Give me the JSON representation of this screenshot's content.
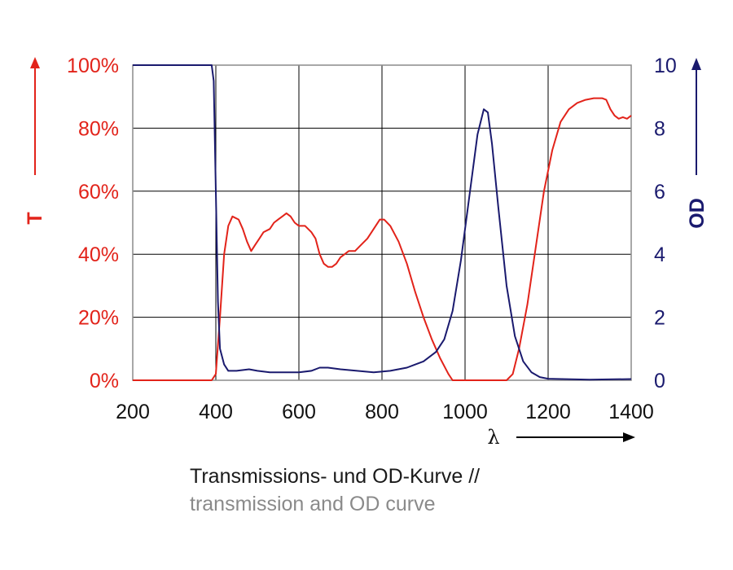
{
  "chart_data": {
    "type": "line",
    "xlabel": "λ",
    "x_ticks": [
      "200",
      "400",
      "600",
      "800",
      "1000",
      "1200",
      "1400"
    ],
    "xlim": [
      200,
      1400
    ],
    "y_left": {
      "label": "T",
      "ticks": [
        "0%",
        "20%",
        "40%",
        "60%",
        "80%",
        "100%"
      ],
      "lim": [
        0,
        100
      ],
      "color": "#e2231a"
    },
    "y_right": {
      "label": "OD",
      "ticks": [
        "0",
        "2",
        "4",
        "6",
        "8",
        "10"
      ],
      "lim": [
        0,
        10
      ],
      "color": "#1a1a6e"
    },
    "grid": true,
    "series": [
      {
        "axis": "left",
        "color": "#e2231a",
        "points": [
          [
            200,
            0
          ],
          [
            390,
            0
          ],
          [
            400,
            2
          ],
          [
            410,
            20
          ],
          [
            420,
            40
          ],
          [
            430,
            49
          ],
          [
            440,
            52
          ],
          [
            455,
            51
          ],
          [
            465,
            48
          ],
          [
            475,
            44
          ],
          [
            485,
            41
          ],
          [
            495,
            43
          ],
          [
            505,
            45
          ],
          [
            515,
            47
          ],
          [
            530,
            48
          ],
          [
            540,
            50
          ],
          [
            550,
            51
          ],
          [
            560,
            52
          ],
          [
            570,
            53
          ],
          [
            580,
            52
          ],
          [
            590,
            50
          ],
          [
            600,
            49
          ],
          [
            615,
            49
          ],
          [
            630,
            47
          ],
          [
            640,
            45
          ],
          [
            650,
            40
          ],
          [
            660,
            37
          ],
          [
            670,
            36
          ],
          [
            680,
            36
          ],
          [
            690,
            37
          ],
          [
            700,
            39
          ],
          [
            710,
            40
          ],
          [
            720,
            41
          ],
          [
            735,
            41
          ],
          [
            750,
            43
          ],
          [
            765,
            45
          ],
          [
            780,
            48
          ],
          [
            795,
            51
          ],
          [
            805,
            51
          ],
          [
            820,
            49
          ],
          [
            840,
            44
          ],
          [
            860,
            37
          ],
          [
            880,
            28
          ],
          [
            900,
            20
          ],
          [
            920,
            13
          ],
          [
            940,
            7
          ],
          [
            960,
            2
          ],
          [
            970,
            0
          ],
          [
            1100,
            0
          ],
          [
            1115,
            2
          ],
          [
            1130,
            10
          ],
          [
            1150,
            24
          ],
          [
            1170,
            42
          ],
          [
            1190,
            60
          ],
          [
            1210,
            73
          ],
          [
            1230,
            82
          ],
          [
            1250,
            86
          ],
          [
            1270,
            88
          ],
          [
            1290,
            89
          ],
          [
            1310,
            89.5
          ],
          [
            1330,
            89.5
          ],
          [
            1340,
            89
          ],
          [
            1350,
            86
          ],
          [
            1360,
            84
          ],
          [
            1370,
            83
          ],
          [
            1380,
            83.5
          ],
          [
            1390,
            83
          ],
          [
            1400,
            84
          ]
        ]
      },
      {
        "axis": "right",
        "color": "#1a1a6e",
        "points": [
          [
            200,
            10
          ],
          [
            390,
            10
          ],
          [
            395,
            9.5
          ],
          [
            400,
            6
          ],
          [
            405,
            2.5
          ],
          [
            410,
            1
          ],
          [
            420,
            0.5
          ],
          [
            430,
            0.3
          ],
          [
            450,
            0.3
          ],
          [
            480,
            0.35
          ],
          [
            500,
            0.3
          ],
          [
            530,
            0.25
          ],
          [
            560,
            0.25
          ],
          [
            600,
            0.25
          ],
          [
            630,
            0.3
          ],
          [
            650,
            0.4
          ],
          [
            670,
            0.4
          ],
          [
            700,
            0.35
          ],
          [
            740,
            0.3
          ],
          [
            780,
            0.25
          ],
          [
            820,
            0.3
          ],
          [
            860,
            0.4
          ],
          [
            900,
            0.6
          ],
          [
            930,
            0.9
          ],
          [
            950,
            1.3
          ],
          [
            970,
            2.2
          ],
          [
            990,
            3.8
          ],
          [
            1010,
            5.8
          ],
          [
            1030,
            7.8
          ],
          [
            1045,
            8.6
          ],
          [
            1055,
            8.5
          ],
          [
            1065,
            7.5
          ],
          [
            1080,
            5.5
          ],
          [
            1100,
            3.0
          ],
          [
            1120,
            1.4
          ],
          [
            1140,
            0.6
          ],
          [
            1160,
            0.25
          ],
          [
            1180,
            0.1
          ],
          [
            1200,
            0.05
          ],
          [
            1300,
            0.02
          ],
          [
            1360,
            0.03
          ],
          [
            1400,
            0.04
          ]
        ]
      }
    ]
  },
  "caption": {
    "line1": "Transmissions- und OD-Kurve //",
    "line2": "transmission and OD curve"
  }
}
